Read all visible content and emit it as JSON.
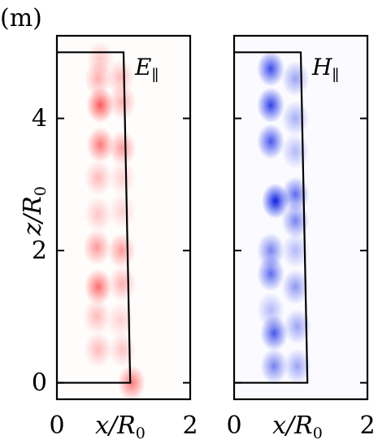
{
  "figure_label": "(m)",
  "colors": {
    "e_field": "#ff2020",
    "h_field": "#0a1fe6",
    "frame": "#000000"
  },
  "chart_data": [
    {
      "type": "heatmap",
      "panel_label": "E",
      "panel_subscript": "∥",
      "xlabel": "x/R",
      "xlabel_sub": "0",
      "ylabel": "z/R",
      "ylabel_sub": "0",
      "xlim": [
        0,
        2
      ],
      "ylim": [
        -0.25,
        5.25
      ],
      "x_ticks": [
        0,
        2
      ],
      "x_tick_labels": [
        "0",
        "2"
      ],
      "y_ticks": [
        0,
        2,
        4
      ],
      "y_tick_labels": [
        "0",
        "2",
        "4"
      ],
      "boundary": [
        [
          0,
          0
        ],
        [
          1.1,
          0
        ],
        [
          1.0,
          5.0
        ],
        [
          0,
          5.0
        ]
      ],
      "intensity_peaks": [
        {
          "x": 0.65,
          "z": 4.9,
          "a": 0.25
        },
        {
          "x": 0.62,
          "z": 4.6,
          "a": 0.35
        },
        {
          "x": 0.95,
          "z": 4.62,
          "a": 0.3
        },
        {
          "x": 0.65,
          "z": 4.2,
          "a": 0.75
        },
        {
          "x": 0.98,
          "z": 4.25,
          "a": 0.35
        },
        {
          "x": 0.65,
          "z": 3.6,
          "a": 0.6
        },
        {
          "x": 0.98,
          "z": 3.55,
          "a": 0.45
        },
        {
          "x": 0.62,
          "z": 3.1,
          "a": 0.3
        },
        {
          "x": 0.98,
          "z": 3.1,
          "a": 0.2
        },
        {
          "x": 0.62,
          "z": 2.55,
          "a": 0.25
        },
        {
          "x": 0.98,
          "z": 2.6,
          "a": 0.2
        },
        {
          "x": 0.6,
          "z": 2.05,
          "a": 0.45
        },
        {
          "x": 0.97,
          "z": 2.0,
          "a": 0.45
        },
        {
          "x": 0.62,
          "z": 1.45,
          "a": 0.65
        },
        {
          "x": 0.98,
          "z": 1.5,
          "a": 0.35
        },
        {
          "x": 0.6,
          "z": 1.0,
          "a": 0.3
        },
        {
          "x": 0.95,
          "z": 0.95,
          "a": 0.2
        },
        {
          "x": 0.62,
          "z": 0.5,
          "a": 0.3
        },
        {
          "x": 0.98,
          "z": 0.5,
          "a": 0.25
        },
        {
          "x": 1.12,
          "z": 0.0,
          "a": 0.6
        }
      ]
    },
    {
      "type": "heatmap",
      "panel_label": "H",
      "panel_subscript": "∥",
      "xlabel": "x/R",
      "xlabel_sub": "0",
      "xlim": [
        0,
        2
      ],
      "ylim": [
        -0.25,
        5.25
      ],
      "x_ticks": [
        0,
        2
      ],
      "x_tick_labels": [
        "0",
        "2"
      ],
      "y_ticks": [
        0,
        2,
        4
      ],
      "boundary": [
        [
          0,
          0
        ],
        [
          1.1,
          0
        ],
        [
          1.0,
          5.0
        ],
        [
          0,
          5.0
        ]
      ],
      "intensity_peaks": [
        {
          "x": 0.55,
          "z": 4.75,
          "a": 0.8
        },
        {
          "x": 0.55,
          "z": 4.2,
          "a": 0.85
        },
        {
          "x": 0.55,
          "z": 3.65,
          "a": 0.75
        },
        {
          "x": 0.92,
          "z": 4.6,
          "a": 0.4
        },
        {
          "x": 0.92,
          "z": 4.0,
          "a": 0.35
        },
        {
          "x": 0.92,
          "z": 3.5,
          "a": 0.3
        },
        {
          "x": 0.62,
          "z": 2.75,
          "a": 1.0
        },
        {
          "x": 0.92,
          "z": 2.85,
          "a": 0.65
        },
        {
          "x": 0.92,
          "z": 2.45,
          "a": 0.55
        },
        {
          "x": 0.55,
          "z": 2.0,
          "a": 0.55
        },
        {
          "x": 0.92,
          "z": 2.0,
          "a": 0.3
        },
        {
          "x": 0.55,
          "z": 1.65,
          "a": 0.65
        },
        {
          "x": 0.92,
          "z": 1.45,
          "a": 0.45
        },
        {
          "x": 0.55,
          "z": 1.1,
          "a": 0.3
        },
        {
          "x": 0.6,
          "z": 0.75,
          "a": 0.75
        },
        {
          "x": 0.95,
          "z": 0.85,
          "a": 0.4
        },
        {
          "x": 0.6,
          "z": 0.25,
          "a": 0.55
        },
        {
          "x": 0.95,
          "z": 0.25,
          "a": 0.4
        }
      ]
    }
  ]
}
